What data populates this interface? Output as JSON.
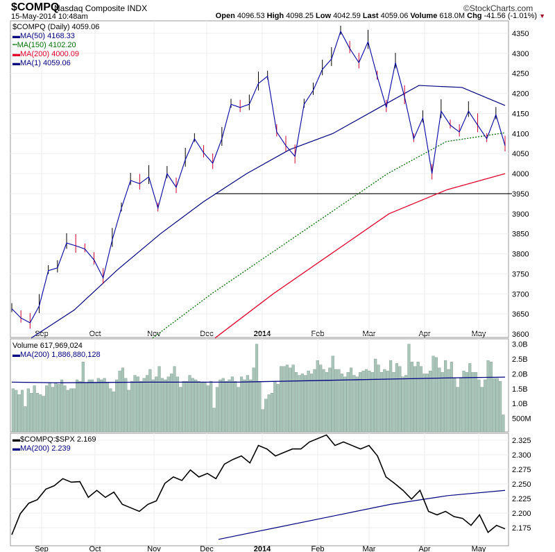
{
  "header": {
    "symbol": "$COMPQ",
    "name": "Nasdaq Composite",
    "exchange": "INDX",
    "brand": "©StockCharts.com",
    "datetime": "15-May-2014 10:48am",
    "quote": [
      {
        "k": "Open",
        "v": "4096.53"
      },
      {
        "k": "High",
        "v": "4098.25"
      },
      {
        "k": "Low",
        "v": "4042.59"
      },
      {
        "k": "Last",
        "v": "4059.06"
      },
      {
        "k": "Volume",
        "v": "618.0M"
      },
      {
        "k": "Chg",
        "v": "-41.56 (-1.01%)"
      }
    ]
  },
  "chart_data": [
    {
      "type": "line",
      "title": "$COMPQ (Daily) 4059.06",
      "ylim": [
        3575,
        4375
      ],
      "yticks": [
        "4350",
        "4300",
        "4250",
        "4200",
        "4150",
        "4100",
        "4050",
        "4000",
        "3950",
        "3900",
        "3850",
        "3800",
        "3750",
        "3700",
        "3650",
        "3600"
      ],
      "xticks": [
        "Sep",
        "Oct",
        "Nov",
        "Dec",
        "2014",
        "Feb",
        "Mar",
        "Apr",
        "May"
      ],
      "legend": [
        "MA(50) 4168.33",
        "MA(150) 4102.20",
        "MA(200) 4000.09",
        "MA(1) 4059.06"
      ],
      "colors": {
        "ma50": "#000080",
        "ma150": "#007000",
        "ma200": "#e0002a",
        "price": "#0000a0"
      },
      "support_level": 3950,
      "price": [
        3663,
        3640,
        3628,
        3670,
        3758,
        3765,
        3827,
        3820,
        3812,
        3785,
        3740,
        3835,
        3914,
        3983,
        3975,
        3992,
        3914,
        4000,
        3966,
        4035,
        4087,
        4052,
        4026,
        4087,
        4173,
        4165,
        4173,
        4225,
        4243,
        4104,
        4070,
        4043,
        4173,
        4208,
        4260,
        4286,
        4355,
        4312,
        4277,
        4329,
        4243,
        4165,
        4277,
        4191,
        4087,
        4139,
        4000,
        4156,
        4121,
        4104,
        4156,
        4121,
        4087,
        4147,
        4070
      ],
      "ma50": [
        3590,
        3660,
        3760,
        3850,
        3930,
        4000,
        4060,
        4100,
        4160,
        4220,
        4215,
        4170
      ],
      "ma150": [
        3590,
        3700,
        3800,
        3900,
        4000,
        4080,
        4102
      ],
      "ma200": [
        3590,
        3700,
        3800,
        3900,
        3960,
        4000
      ]
    },
    {
      "type": "bar",
      "title": "Volume 617,969,024",
      "legend": "MA(200) 1,886,880,128",
      "unit": "B",
      "yticks": [
        "3.0B",
        "2.5B",
        "2.0B",
        "1.5B",
        "1.0B",
        "500M"
      ],
      "values": [
        1.5,
        1.45,
        1.3,
        1.45,
        0.9,
        1.5,
        1.35,
        1.6,
        1.35,
        1.3,
        1.25,
        1.6,
        1.7,
        1.55,
        1.7,
        1.65,
        1.8,
        1.6,
        1.45,
        1.5,
        1.5,
        1.8,
        1.75,
        2.4,
        1.7,
        1.8,
        1.8,
        1.7,
        1.85,
        1.8,
        1.85,
        1.7,
        1.5,
        1.4,
        1.8,
        2.1,
        2.2,
        1.85,
        1.45,
        1.75,
        1.95,
        1.9,
        1.75,
        1.85,
        1.95,
        2.15,
        1.8,
        1.9,
        2.25,
        1.85,
        1.8,
        1.9,
        2.0,
        2.25,
        1.9,
        1.55,
        1.75,
        1.75,
        1.95,
        1.85,
        1.8,
        1.75,
        1.7,
        1.7,
        1.6,
        1.75,
        0.85,
        1.55,
        1.8,
        1.85,
        1.75,
        1.8,
        1.9,
        1.75,
        1.55,
        1.9,
        1.8,
        1.95,
        1.8,
        2.2,
        3.0,
        1.75,
        0.8,
        1.15,
        1.3,
        1.35,
        1.75,
        1.65,
        2.25,
        2.25,
        2.3,
        2.2,
        2.3,
        2.05,
        1.95,
        2.0,
        1.95,
        2.1,
        2.0,
        2.15,
        2.45,
        2.3,
        2.15,
        2.05,
        2.2,
        2.6,
        2.15,
        2.15,
        2.0,
        1.9,
        2.05,
        2.2,
        1.95,
        1.9,
        2.05,
        2.1,
        2.15,
        2.1,
        2.05,
        2.5,
        2.3,
        2.05,
        2.15,
        2.1,
        2.45,
        2.05,
        2.35,
        2.25,
        1.9,
        1.95,
        3.0,
        2.4,
        2.25,
        2.4,
        2.25,
        2.0,
        2.0,
        2.1,
        2.6,
        2.55,
        2.2,
        2.05,
        2.45,
        2.15,
        2.4,
        1.85,
        1.55,
        1.85,
        2.1,
        2.05,
        2.35,
        2.05,
        2.05,
        1.8,
        1.55,
        1.8,
        2.45,
        2.4,
        1.85,
        1.85,
        1.75,
        0.62
      ],
      "ma200": [
        1.72,
        1.7,
        1.71,
        1.72,
        1.72,
        1.72,
        1.75,
        1.78,
        1.81,
        1.84,
        1.87,
        1.89
      ]
    },
    {
      "type": "line",
      "title": "$COMPQ:$SPX 2.169",
      "legend": "MA(200) 2.239",
      "yticks": [
        "2.325",
        "2.300",
        "2.275",
        "2.250",
        "2.225",
        "2.200",
        "2.175"
      ],
      "ratio": [
        2.163,
        2.199,
        2.217,
        2.223,
        2.241,
        2.247,
        2.259,
        2.253,
        2.254,
        2.227,
        2.239,
        2.227,
        2.236,
        2.215,
        2.209,
        2.203,
        2.215,
        2.221,
        2.251,
        2.262,
        2.256,
        2.274,
        2.262,
        2.268,
        2.259,
        2.284,
        2.292,
        2.298,
        2.286,
        2.316,
        2.31,
        2.298,
        2.304,
        2.31,
        2.31,
        2.322,
        2.328,
        2.334,
        2.316,
        2.322,
        2.316,
        2.31,
        2.316,
        2.298,
        2.262,
        2.251,
        2.239,
        2.224,
        2.239,
        2.203,
        2.197,
        2.203,
        2.194,
        2.191,
        2.179,
        2.197,
        2.167,
        2.179,
        2.173
      ],
      "ma200": [
        2.155,
        2.175,
        2.195,
        2.215,
        2.23,
        2.239
      ]
    }
  ]
}
